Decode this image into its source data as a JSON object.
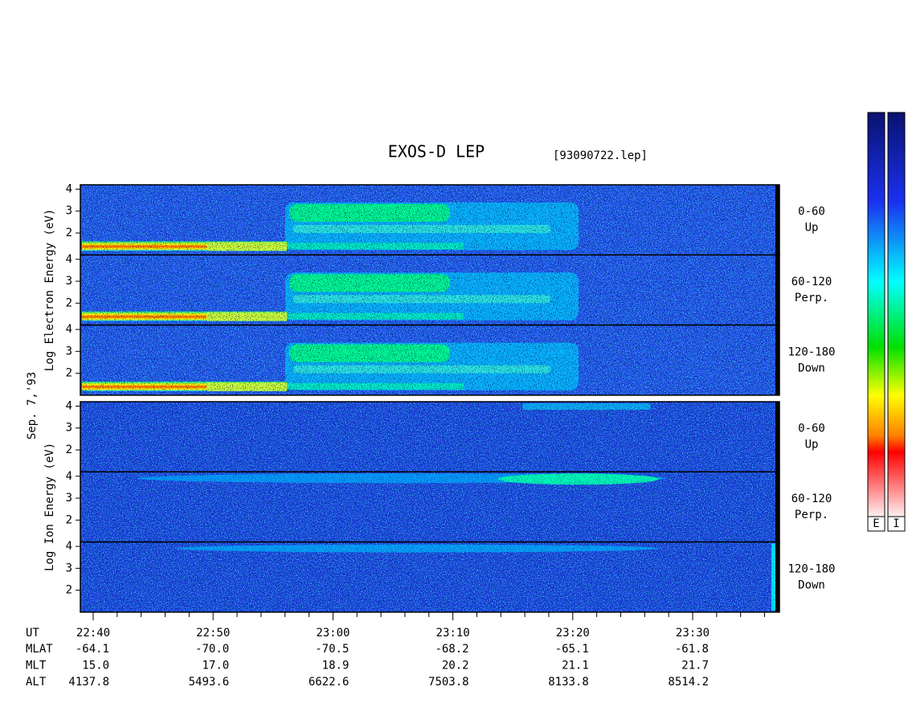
{
  "chart_data": {
    "type": "spectrogram",
    "title": "EXOS-D LEP",
    "file": "[93090722.lep]",
    "date": "Sep. 7,'93",
    "ylim": [
      1,
      4.2
    ],
    "yticks": [
      2,
      3,
      4
    ],
    "groups": [
      {
        "ylabel": "Log  Electron  Energy (eV)",
        "panels": [
          {
            "label": [
              "0-60",
              "Up"
            ]
          },
          {
            "label": [
              "60-120",
              "Perp."
            ]
          },
          {
            "label": [
              "120-180",
              "Down"
            ]
          }
        ]
      },
      {
        "ylabel": "Log   Ion   Energy (eV)",
        "panels": [
          {
            "label": [
              "0-60",
              "Up"
            ]
          },
          {
            "label": [
              "60-120",
              "Perp."
            ]
          },
          {
            "label": [
              "120-180",
              "Down"
            ]
          }
        ]
      }
    ],
    "x_name": "UT",
    "x": [
      "22:40",
      "22:50",
      "23:00",
      "23:10",
      "23:20",
      "23:30"
    ],
    "ephemeris": [
      {
        "name": "MLAT",
        "values": [
          "-64.1",
          "-70.0",
          "-70.5",
          "-68.2",
          "-65.1",
          "-61.8"
        ]
      },
      {
        "name": "MLT",
        "values": [
          "15.0",
          "17.0",
          "18.9",
          "20.2",
          "21.1",
          "21.7"
        ]
      },
      {
        "name": "ALT",
        "values": [
          "4137.8",
          "5493.6",
          "6622.6",
          "7503.8",
          "8133.8",
          "8514.2"
        ]
      }
    ],
    "colorbars": [
      "E",
      "I"
    ]
  }
}
